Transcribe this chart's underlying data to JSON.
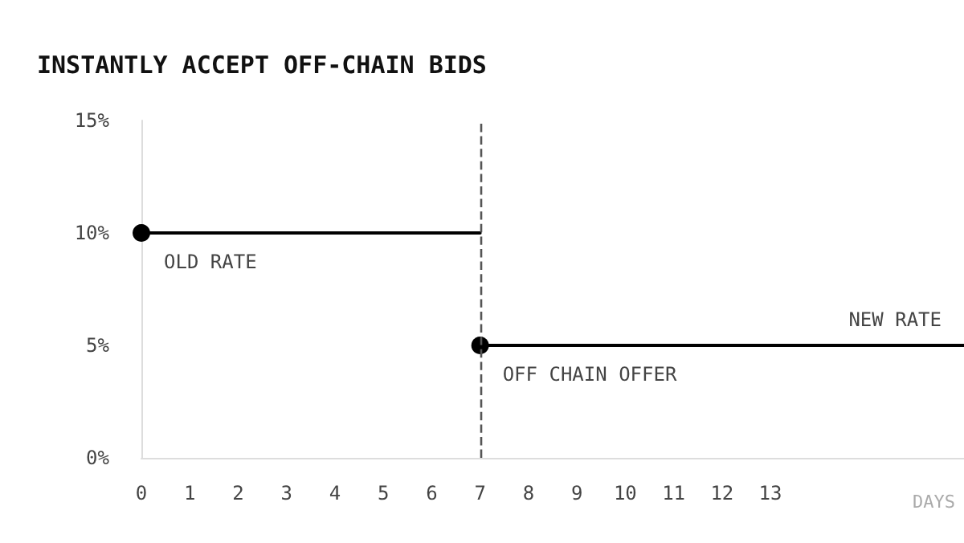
{
  "chart_data": {
    "type": "line",
    "title": "INSTANTLY ACCEPT OFF-CHAIN BIDS",
    "xlabel": "DAYS",
    "series": [
      {
        "color": "#000000",
        "x": [
          0,
          7
        ],
        "values": [
          10,
          10
        ]
      },
      {
        "color": "#000000",
        "x": [
          7,
          17
        ],
        "values": [
          5,
          5
        ]
      }
    ],
    "xlim": [
      0,
      17
    ],
    "xticks": [
      0,
      1,
      2,
      3,
      4,
      5,
      6,
      7,
      8,
      9,
      10,
      11,
      12,
      13
    ],
    "ylim": [
      0,
      15
    ],
    "yticks": [
      {
        "value": 0,
        "label": "0%"
      },
      {
        "value": 5,
        "label": "5%"
      },
      {
        "value": 10,
        "label": "10%"
      },
      {
        "value": 15,
        "label": "15%"
      }
    ],
    "ref_lines": [
      {
        "axis": "x",
        "value": 7,
        "color": "#555555",
        "line_style": "dashed"
      }
    ],
    "annotations": [
      {
        "text": "OLD RATE",
        "x": 0,
        "y": 10
      },
      {
        "text": "OFF CHAIN OFFER",
        "x": 7,
        "y": 5
      },
      {
        "text": "NEW RATE",
        "x": 17,
        "y": 5
      }
    ],
    "grid": false,
    "marker": "circle",
    "line_style": "solid"
  }
}
